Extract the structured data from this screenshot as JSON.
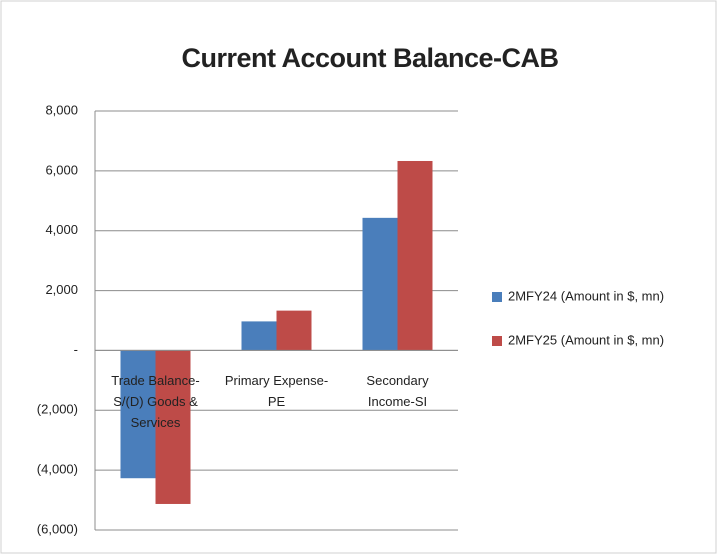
{
  "chart_data": {
    "type": "bar",
    "title": "Current Account Balance-CAB",
    "categories": [
      "Trade Balance-S/(D) Goods & Services",
      "Primary Expense-PE",
      "Secondary Income-SI"
    ],
    "series": [
      {
        "name": "2MFY24 (Amount in $, mn)",
        "color": "#4a7ebb",
        "values": [
          -4270,
          970,
          4430
        ]
      },
      {
        "name": "2MFY25 (Amount in $, mn)",
        "color": "#be4b48",
        "values": [
          -5130,
          1330,
          6330
        ]
      }
    ],
    "ylim": [
      -6000,
      8000
    ],
    "yticks": [
      {
        "value": -6000,
        "label": "(6,000)"
      },
      {
        "value": -4000,
        "label": "(4,000)"
      },
      {
        "value": -2000,
        "label": "(2,000)"
      },
      {
        "value": 0,
        "label": "-"
      },
      {
        "value": 2000,
        "label": "2,000"
      },
      {
        "value": 4000,
        "label": "4,000"
      },
      {
        "value": 6000,
        "label": "6,000"
      },
      {
        "value": 8000,
        "label": "8,000"
      }
    ],
    "grid": true,
    "legend": "right"
  }
}
